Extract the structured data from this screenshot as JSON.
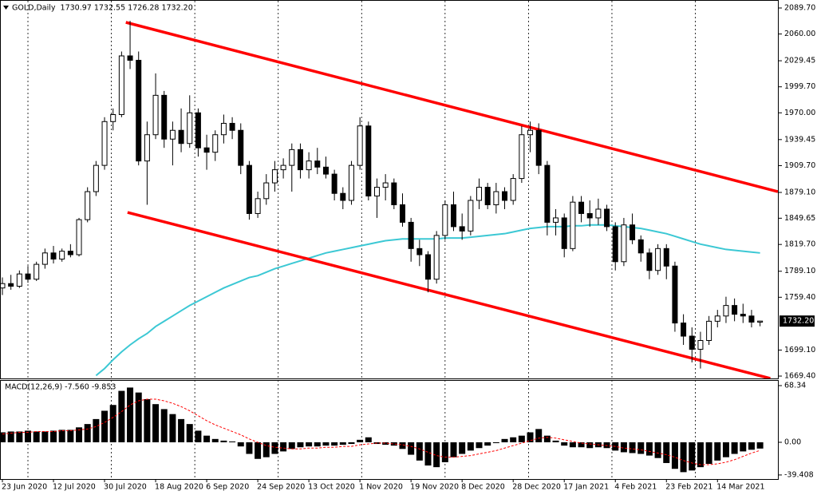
{
  "chart_data": [
    {
      "type": "candlestick",
      "title": "GOLD,Daily  1730.97 1732.55 1726.28 1732.20",
      "last_price_label": "1732.20",
      "categories": [
        "23 Jun 2020",
        null,
        null,
        null,
        null,
        null,
        "12 Jul 2020",
        null,
        null,
        null,
        null,
        null,
        "30 Jul 2020",
        null,
        null,
        null,
        null,
        null,
        "18 Aug 2020",
        null,
        null,
        null,
        null,
        null,
        "6 Sep 2020",
        null,
        null,
        null,
        null,
        null,
        "24 Sep 2020",
        null,
        null,
        null,
        null,
        null,
        "13 Oct 2020",
        null,
        null,
        null,
        null,
        null,
        "1 Nov 2020",
        null,
        null,
        null,
        null,
        null,
        "19 Nov 2020",
        null,
        null,
        null,
        null,
        null,
        "8 Dec 2020",
        null,
        null,
        null,
        null,
        null,
        "28 Dec 2020",
        null,
        null,
        null,
        null,
        null,
        "17 Jan 2021",
        null,
        null,
        null,
        null,
        null,
        "4 Feb 2021",
        null,
        null,
        null,
        null,
        null,
        "23 Feb 2021",
        null,
        null,
        null,
        null,
        null,
        "14 Mar 2021",
        null,
        null,
        null,
        null,
        null
      ],
      "open": [
        1770,
        1775,
        1772,
        1786,
        1780,
        1797,
        1810,
        1803,
        1812,
        1808,
        1848,
        1880,
        1910,
        1960,
        1968,
        2035,
        2030,
        1915,
        1945,
        1990,
        1940,
        1950,
        1935,
        1970,
        1930,
        1925,
        1945,
        1958,
        1950,
        1910,
        1855,
        1872,
        1890,
        1905,
        1910,
        1928,
        1905,
        1915,
        1908,
        1900,
        1878,
        1870,
        1910,
        1955,
        1875,
        1885,
        1890,
        1865,
        1845,
        1815,
        1808,
        1780,
        1830,
        1865,
        1840,
        1835,
        1870,
        1885,
        1865,
        1880,
        1870,
        1895,
        1945,
        1950,
        1910,
        1845,
        1850,
        1815,
        1868,
        1855,
        1850,
        1860,
        1840,
        1800,
        1842,
        1825,
        1810,
        1790,
        1815,
        1795,
        1730,
        1715,
        1700,
        1710,
        1732,
        1738,
        1750,
        1740,
        1738,
        1730.97
      ],
      "high": [
        1782,
        1785,
        1790,
        1795,
        1800,
        1815,
        1818,
        1815,
        1820,
        1850,
        1885,
        1915,
        1965,
        1975,
        2040,
        2075,
        2040,
        1960,
        2015,
        1995,
        1960,
        1975,
        1990,
        1975,
        1945,
        1950,
        1968,
        1965,
        1958,
        1915,
        1880,
        1900,
        1915,
        1918,
        1935,
        1935,
        1925,
        1930,
        1920,
        1905,
        1885,
        1915,
        1965,
        1960,
        1895,
        1900,
        1895,
        1878,
        1850,
        1825,
        1812,
        1835,
        1870,
        1880,
        1855,
        1875,
        1895,
        1890,
        1890,
        1885,
        1900,
        1955,
        1960,
        1958,
        1915,
        1860,
        1855,
        1875,
        1875,
        1870,
        1872,
        1865,
        1845,
        1850,
        1855,
        1830,
        1815,
        1820,
        1820,
        1800,
        1740,
        1725,
        1720,
        1738,
        1745,
        1760,
        1758,
        1752,
        1745,
        1732.55
      ],
      "low": [
        1762,
        1768,
        1770,
        1776,
        1778,
        1792,
        1798,
        1800,
        1805,
        1806,
        1845,
        1875,
        1905,
        1950,
        1965,
        2020,
        1910,
        1865,
        1940,
        1930,
        1910,
        1925,
        1930,
        1920,
        1905,
        1915,
        1935,
        1940,
        1900,
        1848,
        1850,
        1865,
        1880,
        1895,
        1880,
        1895,
        1895,
        1900,
        1895,
        1870,
        1860,
        1865,
        1905,
        1870,
        1850,
        1870,
        1860,
        1840,
        1800,
        1795,
        1765,
        1775,
        1825,
        1835,
        1825,
        1830,
        1860,
        1860,
        1855,
        1860,
        1865,
        1890,
        1925,
        1900,
        1830,
        1830,
        1805,
        1812,
        1845,
        1840,
        1842,
        1835,
        1790,
        1795,
        1820,
        1800,
        1780,
        1785,
        1780,
        1720,
        1705,
        1685,
        1678,
        1705,
        1725,
        1730,
        1732,
        1730,
        1725,
        1726.28
      ],
      "close": [
        1775,
        1772,
        1786,
        1780,
        1797,
        1810,
        1803,
        1812,
        1808,
        1848,
        1880,
        1910,
        1960,
        1968,
        2035,
        2030,
        1915,
        1945,
        1990,
        1940,
        1950,
        1935,
        1970,
        1930,
        1925,
        1945,
        1958,
        1950,
        1910,
        1855,
        1872,
        1890,
        1905,
        1910,
        1928,
        1905,
        1915,
        1908,
        1900,
        1878,
        1870,
        1910,
        1955,
        1875,
        1885,
        1890,
        1865,
        1845,
        1815,
        1808,
        1780,
        1830,
        1865,
        1840,
        1835,
        1870,
        1885,
        1865,
        1880,
        1870,
        1895,
        1945,
        1950,
        1910,
        1845,
        1850,
        1815,
        1868,
        1855,
        1850,
        1860,
        1840,
        1800,
        1842,
        1825,
        1810,
        1790,
        1815,
        1795,
        1730,
        1715,
        1700,
        1710,
        1732,
        1738,
        1750,
        1740,
        1738,
        1731,
        1732.2
      ],
      "up_color": "#ffffff",
      "down_color": "#000000",
      "outline_color": "#000000",
      "ma": {
        "color": "#3cc8d4",
        "values": [
          null,
          null,
          null,
          null,
          null,
          null,
          null,
          null,
          null,
          null,
          null,
          1670,
          1678,
          1688,
          1697,
          1705,
          1712,
          1718,
          1726,
          1732,
          1738,
          1744,
          1750,
          1755,
          1760,
          1765,
          1770,
          1774,
          1778,
          1782,
          1784,
          1788,
          1792,
          1795,
          1798,
          1801,
          1804,
          1807,
          1810,
          1812,
          1814,
          1816,
          1818,
          1820,
          1822,
          1824,
          1825,
          1826,
          1826,
          1826,
          1826,
          1826,
          1827,
          1827,
          1827,
          1828,
          1829,
          1830,
          1831,
          1832,
          1834,
          1836,
          1838,
          1839,
          1840,
          1840,
          1840,
          1841,
          1841,
          1842,
          1842,
          1842,
          1841,
          1840,
          1839,
          1838,
          1836,
          1834,
          1832,
          1829,
          1826,
          1823,
          1820,
          1818,
          1816,
          1814,
          1813,
          1812,
          1811,
          1810
        ]
      },
      "trendlines": [
        {
          "color": "#ff0000",
          "x": [
            14.5,
            91.1
          ],
          "y": [
            2073.3,
            1880.0
          ]
        },
        {
          "color": "#ff0000",
          "x": [
            14.7,
            90.2
          ],
          "y": [
            1856.3,
            1666.7
          ]
        }
      ],
      "ylim": [
        1666.7,
        2097.0
      ],
      "yticks": [
        {
          "value": 2089.7,
          "label": "2089.70"
        },
        {
          "value": 2060,
          "label": "2060.00"
        },
        {
          "value": 2029.45,
          "label": "2029.45"
        },
        {
          "value": 1999.7,
          "label": "1999.70"
        },
        {
          "value": 1970,
          "label": "1970.00"
        },
        {
          "value": 1939.45,
          "label": "1939.45"
        },
        {
          "value": 1909.7,
          "label": "1909.70"
        },
        {
          "value": 1879.1,
          "label": "1879.10"
        },
        {
          "value": 1849.65,
          "label": "1849.65"
        },
        {
          "value": 1819.7,
          "label": "1819.70"
        },
        {
          "value": 1789.1,
          "label": "1789.10"
        },
        {
          "value": 1759.4,
          "label": "1759.40"
        },
        {
          "value": 1699.1,
          "label": "1699.10"
        },
        {
          "value": 1669.4,
          "label": "1669.40"
        }
      ],
      "grid": true
    },
    {
      "type": "bar",
      "title": "MACD(12,26,9) -7.560 -9.853",
      "series": [
        {
          "color": "#000000",
          "values": [
            12,
            13,
            13,
            14,
            13,
            13,
            14,
            15,
            15,
            18,
            22,
            28,
            38,
            45,
            62,
            66,
            60,
            52,
            46,
            40,
            34,
            28,
            22,
            14,
            8,
            4,
            2,
            1,
            -5,
            -14,
            -20,
            -18,
            -14,
            -11,
            -8,
            -6,
            -5,
            -5,
            -4,
            -4,
            -3,
            -2,
            3,
            6,
            -2,
            -3,
            -4,
            -8,
            -15,
            -22,
            -28,
            -30,
            -24,
            -18,
            -14,
            -10,
            -7,
            -4,
            -1,
            4,
            6,
            8,
            12,
            16,
            8,
            2,
            -4,
            -6,
            -6,
            -7,
            -6,
            -7,
            -10,
            -12,
            -13,
            -14,
            -16,
            -19,
            -25,
            -32,
            -36,
            -34,
            -30,
            -26,
            -22,
            -18,
            -14,
            -11,
            -9,
            -7.56
          ]
        },
        {
          "type": "line",
          "color": "#ff0000",
          "values": [
            10,
            11,
            12,
            12,
            13,
            13,
            13,
            14,
            14,
            15,
            16,
            19,
            24,
            30,
            37,
            45,
            50,
            52,
            52,
            50,
            47,
            43,
            38,
            32,
            26,
            21,
            17,
            13,
            9,
            4,
            0,
            -4,
            -6,
            -7,
            -8,
            -8,
            -7,
            -7,
            -6,
            -6,
            -5,
            -5,
            -3,
            -2,
            -1,
            -1,
            -2,
            -3,
            -5,
            -8,
            -12,
            -16,
            -18,
            -18,
            -17,
            -16,
            -14,
            -12,
            -10,
            -7,
            -4,
            -1,
            2,
            5,
            6,
            5,
            3,
            1,
            -1,
            -2,
            -3,
            -4,
            -5,
            -7,
            -8,
            -9,
            -11,
            -13,
            -15,
            -18,
            -22,
            -25,
            -27,
            -27,
            -26,
            -24,
            -21,
            -17,
            -13,
            -9.853
          ]
        }
      ],
      "ylim": [
        -44.3,
        74.1
      ],
      "yticks": [
        {
          "value": 68.34,
          "label": "68.34"
        },
        {
          "value": 0,
          "label": "0.00"
        },
        {
          "value": -39.408,
          "label": "-39.408"
        }
      ]
    }
  ]
}
